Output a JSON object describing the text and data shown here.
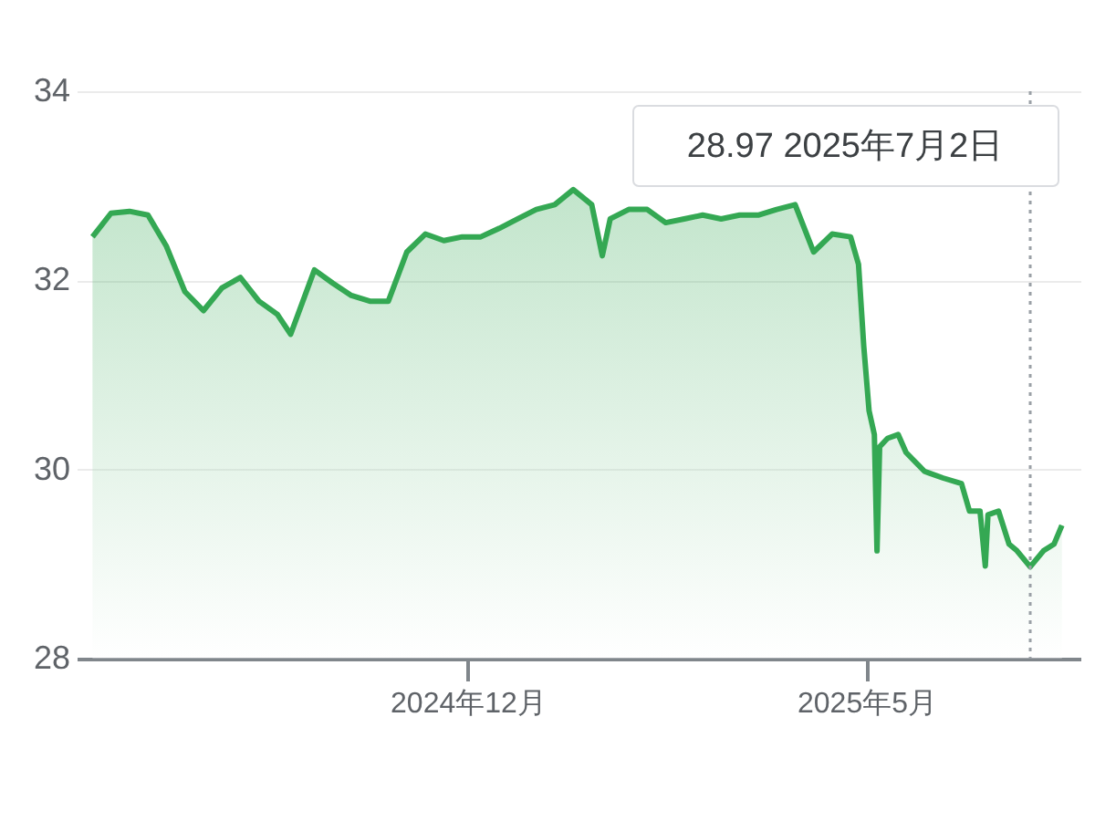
{
  "chart_data": {
    "type": "area",
    "x": [
      "2024-07-12",
      "2024-07-19",
      "2024-07-26",
      "2024-08-02",
      "2024-08-09",
      "2024-08-16",
      "2024-08-23",
      "2024-08-30",
      "2024-09-06",
      "2024-09-13",
      "2024-09-20",
      "2024-09-25",
      "2024-10-04",
      "2024-10-11",
      "2024-10-18",
      "2024-10-25",
      "2024-11-01",
      "2024-11-08",
      "2024-11-15",
      "2024-11-22",
      "2024-11-29",
      "2024-12-06",
      "2024-12-13",
      "2024-12-20",
      "2024-12-27",
      "2025-01-03",
      "2025-01-10",
      "2025-01-17",
      "2025-01-21",
      "2025-01-24",
      "2025-01-31",
      "2025-02-07",
      "2025-02-14",
      "2025-02-21",
      "2025-02-28",
      "2025-03-07",
      "2025-03-14",
      "2025-03-21",
      "2025-03-28",
      "2025-04-04",
      "2025-04-11",
      "2025-04-18",
      "2025-04-25",
      "2025-04-28",
      "2025-04-30",
      "2025-05-02",
      "2025-05-04",
      "2025-05-05",
      "2025-05-06",
      "2025-05-09",
      "2025-05-13",
      "2025-05-16",
      "2025-05-23",
      "2025-05-30",
      "2025-06-06",
      "2025-06-09",
      "2025-06-13",
      "2025-06-15",
      "2025-06-16",
      "2025-06-20",
      "2025-06-24",
      "2025-06-27",
      "2025-07-02",
      "2025-07-07",
      "2025-07-11",
      "2025-07-14"
    ],
    "series": [
      {
        "color": "#34a853",
        "values": [
          32.46,
          32.71,
          32.73,
          32.69,
          32.36,
          31.88,
          31.68,
          31.92,
          32.03,
          31.78,
          31.64,
          31.43,
          32.11,
          31.97,
          31.84,
          31.78,
          31.78,
          32.3,
          32.49,
          32.42,
          32.46,
          32.46,
          32.55,
          32.65,
          32.75,
          32.8,
          32.96,
          32.8,
          32.26,
          32.65,
          32.75,
          32.75,
          32.61,
          32.65,
          32.69,
          32.65,
          32.69,
          32.69,
          32.75,
          32.8,
          32.3,
          32.49,
          32.46,
          32.17,
          31.3,
          30.62,
          30.37,
          29.14,
          30.24,
          30.33,
          30.37,
          30.18,
          29.98,
          29.91,
          29.85,
          29.56,
          29.56,
          28.98,
          29.52,
          29.56,
          29.21,
          29.14,
          28.97,
          29.14,
          29.21,
          29.41
        ]
      }
    ],
    "xlim": [
      "2024-07-06",
      "2025-07-21"
    ],
    "xticks": [
      {
        "value": "2024-12-01",
        "label": "2024年12月"
      },
      {
        "value": "2025-05-01",
        "label": "2025年5月"
      }
    ],
    "ylim": [
      28,
      34
    ],
    "yticks": [
      28,
      30,
      32,
      34
    ],
    "grid": "y",
    "ref_lines": [
      {
        "axis": "x",
        "value": "2025-07-02",
        "color": "#9aa0a6",
        "line_style": "dotted"
      }
    ],
    "annotations": [
      "28.97  2025年7月2日"
    ]
  }
}
